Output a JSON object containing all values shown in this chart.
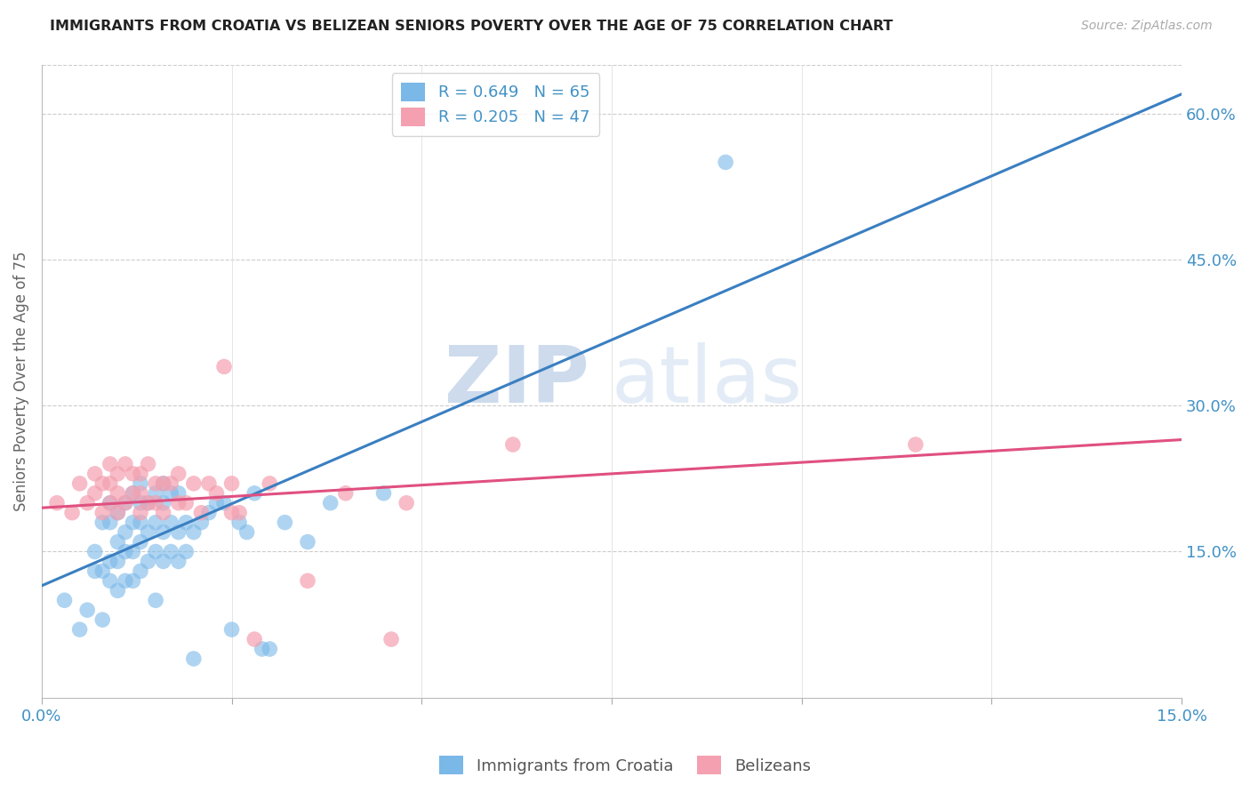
{
  "title": "IMMIGRANTS FROM CROATIA VS BELIZEAN SENIORS POVERTY OVER THE AGE OF 75 CORRELATION CHART",
  "source": "Source: ZipAtlas.com",
  "ylabel": "Seniors Poverty Over the Age of 75",
  "xlim": [
    0.0,
    0.15
  ],
  "ylim": [
    0.0,
    0.65
  ],
  "x_ticks": [
    0.0,
    0.025,
    0.05,
    0.075,
    0.1,
    0.125,
    0.15
  ],
  "y_ticks_right": [
    0.15,
    0.3,
    0.45,
    0.6
  ],
  "y_tick_labels_right": [
    "15.0%",
    "30.0%",
    "45.0%",
    "60.0%"
  ],
  "legend_r_croatia": "R = 0.649",
  "legend_n_croatia": "N = 65",
  "legend_r_belize": "R = 0.205",
  "legend_n_belize": "N = 47",
  "croatia_color": "#7ab8e8",
  "belize_color": "#f4a0b0",
  "croatia_line_color": "#3a7fc1",
  "belize_line_color": "#e05080",
  "watermark_zip": "ZIP",
  "watermark_atlas": "atlas",
  "background_color": "#ffffff",
  "grid_color": "#cccccc",
  "croatia_scatter_x": [
    0.003,
    0.005,
    0.006,
    0.007,
    0.007,
    0.008,
    0.008,
    0.008,
    0.009,
    0.009,
    0.009,
    0.009,
    0.01,
    0.01,
    0.01,
    0.01,
    0.011,
    0.011,
    0.011,
    0.011,
    0.012,
    0.012,
    0.012,
    0.012,
    0.013,
    0.013,
    0.013,
    0.013,
    0.013,
    0.014,
    0.014,
    0.014,
    0.015,
    0.015,
    0.015,
    0.015,
    0.016,
    0.016,
    0.016,
    0.016,
    0.017,
    0.017,
    0.017,
    0.018,
    0.018,
    0.018,
    0.019,
    0.019,
    0.02,
    0.02,
    0.021,
    0.022,
    0.023,
    0.024,
    0.025,
    0.026,
    0.027,
    0.028,
    0.029,
    0.03,
    0.032,
    0.035,
    0.038,
    0.045,
    0.09
  ],
  "croatia_scatter_y": [
    0.1,
    0.07,
    0.09,
    0.13,
    0.15,
    0.08,
    0.13,
    0.18,
    0.12,
    0.14,
    0.18,
    0.2,
    0.11,
    0.14,
    0.16,
    0.19,
    0.12,
    0.15,
    0.17,
    0.2,
    0.12,
    0.15,
    0.18,
    0.21,
    0.13,
    0.16,
    0.18,
    0.2,
    0.22,
    0.14,
    0.17,
    0.2,
    0.1,
    0.15,
    0.18,
    0.21,
    0.14,
    0.17,
    0.2,
    0.22,
    0.15,
    0.18,
    0.21,
    0.14,
    0.17,
    0.21,
    0.15,
    0.18,
    0.04,
    0.17,
    0.18,
    0.19,
    0.2,
    0.2,
    0.07,
    0.18,
    0.17,
    0.21,
    0.05,
    0.05,
    0.18,
    0.16,
    0.2,
    0.21,
    0.55
  ],
  "belize_scatter_x": [
    0.002,
    0.004,
    0.005,
    0.006,
    0.007,
    0.007,
    0.008,
    0.008,
    0.009,
    0.009,
    0.009,
    0.01,
    0.01,
    0.01,
    0.011,
    0.011,
    0.012,
    0.012,
    0.013,
    0.013,
    0.013,
    0.014,
    0.014,
    0.015,
    0.015,
    0.016,
    0.016,
    0.017,
    0.018,
    0.018,
    0.019,
    0.02,
    0.021,
    0.022,
    0.023,
    0.024,
    0.025,
    0.025,
    0.026,
    0.028,
    0.03,
    0.035,
    0.04,
    0.046,
    0.048,
    0.062,
    0.115
  ],
  "belize_scatter_y": [
    0.2,
    0.19,
    0.22,
    0.2,
    0.21,
    0.23,
    0.19,
    0.22,
    0.2,
    0.22,
    0.24,
    0.19,
    0.21,
    0.23,
    0.2,
    0.24,
    0.21,
    0.23,
    0.19,
    0.21,
    0.23,
    0.2,
    0.24,
    0.2,
    0.22,
    0.19,
    0.22,
    0.22,
    0.2,
    0.23,
    0.2,
    0.22,
    0.19,
    0.22,
    0.21,
    0.34,
    0.19,
    0.22,
    0.19,
    0.06,
    0.22,
    0.12,
    0.21,
    0.06,
    0.2,
    0.26,
    0.26
  ],
  "croatia_line_x": [
    0.0,
    0.15
  ],
  "croatia_line_y": [
    0.115,
    0.62
  ],
  "belize_line_x": [
    0.0,
    0.15
  ],
  "belize_line_y": [
    0.195,
    0.265
  ]
}
